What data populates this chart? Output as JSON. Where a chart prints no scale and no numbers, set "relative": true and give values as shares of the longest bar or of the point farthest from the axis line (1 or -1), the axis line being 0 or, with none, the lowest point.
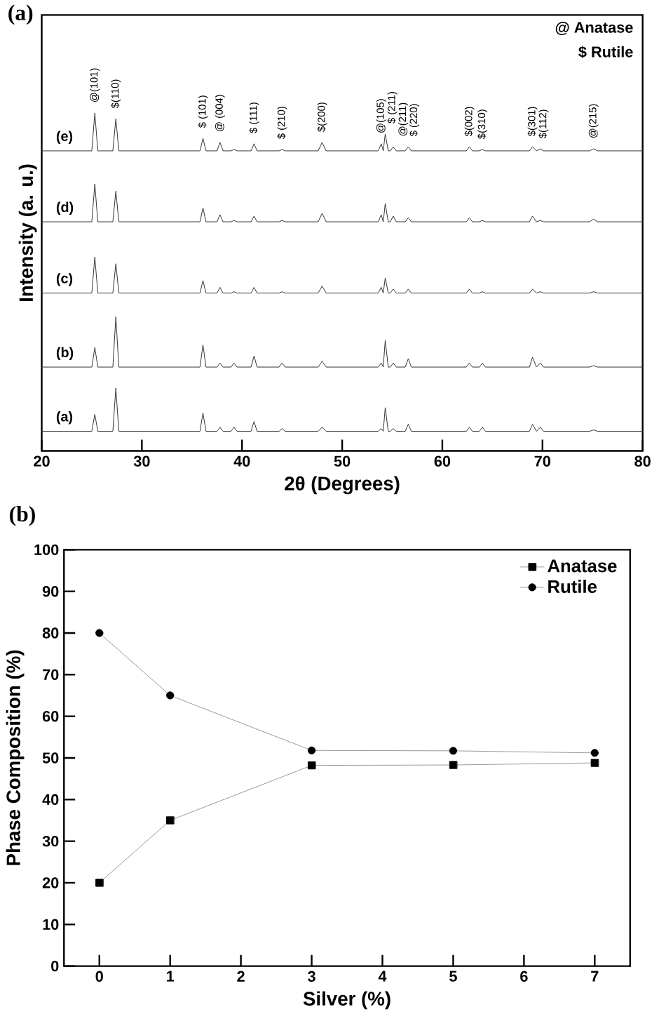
{
  "chart_data": [
    {
      "type": "line",
      "title": "(a)",
      "xlabel": "2θ (Degrees)",
      "ylabel": "Intensity (a. u.)",
      "relative": true,
      "xlim": [
        20,
        80
      ],
      "xticks": [
        20,
        30,
        40,
        50,
        60,
        70,
        80
      ],
      "x": [
        20,
        25.0,
        25.3,
        25.6,
        27.1,
        27.4,
        27.7,
        35.8,
        36.1,
        36.4,
        37.5,
        37.8,
        38.1,
        38.9,
        39.2,
        39.5,
        40.9,
        41.2,
        41.5,
        43.7,
        44.0,
        44.3,
        47.6,
        48.0,
        48.4,
        53.6,
        53.9,
        54.1,
        54.3,
        54.6,
        54.8,
        55.1,
        55.4,
        56.3,
        56.6,
        56.9,
        62.4,
        62.7,
        63.0,
        63.7,
        64.0,
        64.3,
        68.7,
        69.0,
        69.4,
        69.8,
        70.1,
        74.7,
        75.1,
        75.5,
        80
      ],
      "series": [
        {
          "name": "(a)",
          "color": "#333333",
          "values": [
            0.058,
            0.058,
            0.108,
            0.058,
            0.058,
            0.186,
            0.058,
            0.058,
            0.112,
            0.058,
            0.058,
            0.07,
            0.058,
            0.058,
            0.07,
            0.058,
            0.058,
            0.087,
            0.058,
            0.058,
            0.066,
            0.058,
            0.058,
            0.07,
            0.058,
            0.058,
            0.066,
            0.058,
            0.128,
            0.058,
            0.058,
            0.066,
            0.058,
            0.058,
            0.079,
            0.058,
            0.058,
            0.07,
            0.058,
            0.058,
            0.07,
            0.058,
            0.058,
            0.079,
            0.058,
            0.07,
            0.058,
            0.058,
            0.062,
            0.058,
            0.058
          ]
        },
        {
          "name": "(b)",
          "color": "#333333",
          "values": [
            0.248,
            0.248,
            0.306,
            0.248,
            0.248,
            0.397,
            0.248,
            0.248,
            0.314,
            0.248,
            0.248,
            0.26,
            0.248,
            0.248,
            0.26,
            0.248,
            0.248,
            0.281,
            0.248,
            0.248,
            0.26,
            0.248,
            0.248,
            0.265,
            0.248,
            0.248,
            0.26,
            0.248,
            0.327,
            0.248,
            0.248,
            0.26,
            0.248,
            0.248,
            0.273,
            0.248,
            0.248,
            0.26,
            0.248,
            0.248,
            0.26,
            0.248,
            0.248,
            0.277,
            0.248,
            0.26,
            0.248,
            0.248,
            0.252,
            0.248,
            0.248
          ]
        },
        {
          "name": "(c)",
          "color": "#333333",
          "values": [
            0.467,
            0.467,
            0.574,
            0.467,
            0.467,
            0.554,
            0.467,
            0.467,
            0.504,
            0.467,
            0.467,
            0.484,
            0.467,
            0.467,
            0.471,
            0.467,
            0.467,
            0.484,
            0.467,
            0.467,
            0.471,
            0.467,
            0.467,
            0.488,
            0.467,
            0.467,
            0.484,
            0.467,
            0.512,
            0.467,
            0.467,
            0.479,
            0.467,
            0.467,
            0.479,
            0.467,
            0.467,
            0.479,
            0.467,
            0.467,
            0.471,
            0.467,
            0.467,
            0.479,
            0.467,
            0.471,
            0.467,
            0.467,
            0.471,
            0.467,
            0.467
          ]
        },
        {
          "name": "(d)",
          "color": "#333333",
          "values": [
            0.678,
            0.678,
            0.79,
            0.678,
            0.678,
            0.769,
            0.678,
            0.678,
            0.719,
            0.678,
            0.678,
            0.699,
            0.678,
            0.678,
            0.682,
            0.678,
            0.678,
            0.695,
            0.678,
            0.678,
            0.682,
            0.678,
            0.678,
            0.703,
            0.678,
            0.678,
            0.699,
            0.678,
            0.732,
            0.678,
            0.678,
            0.695,
            0.678,
            0.678,
            0.69,
            0.678,
            0.678,
            0.69,
            0.678,
            0.678,
            0.682,
            0.678,
            0.678,
            0.695,
            0.678,
            0.682,
            0.678,
            0.678,
            0.686,
            0.678,
            0.678
          ]
        },
        {
          "name": "(e)",
          "color": "#333333",
          "values": [
            0.888,
            0.888,
            1.0,
            0.888,
            0.888,
            0.983,
            0.888,
            0.888,
            0.925,
            0.888,
            0.888,
            0.913,
            0.888,
            0.888,
            0.892,
            0.888,
            0.888,
            0.909,
            0.888,
            0.888,
            0.892,
            0.888,
            0.888,
            0.913,
            0.888,
            0.888,
            0.909,
            0.888,
            0.938,
            0.888,
            0.888,
            0.9,
            0.888,
            0.888,
            0.9,
            0.888,
            0.888,
            0.9,
            0.888,
            0.888,
            0.892,
            0.888,
            0.888,
            0.9,
            0.888,
            0.894,
            0.888,
            0.888,
            0.894,
            0.888,
            0.888
          ]
        }
      ],
      "annotations": [
        "@ Anatase",
        "$ Rutile",
        {
          "text": "@(101)",
          "x": 25.3,
          "y": 1.0
        },
        {
          "text": "$(110)",
          "x": 27.4,
          "y": 0.983
        },
        {
          "text": "$ (101)",
          "x": 36.1,
          "y": 0.925
        },
        {
          "text": "@ (004)",
          "x": 37.8,
          "y": 0.913
        },
        {
          "text": "$ (111)",
          "x": 41.2,
          "y": 0.909
        },
        {
          "text": "$ (210)",
          "x": 44.0,
          "y": 0.892
        },
        {
          "text": "$(200)",
          "x": 48.0,
          "y": 0.913
        },
        {
          "text": "@(105)",
          "x": 53.9,
          "y": 0.909
        },
        {
          "text": "$ (211)",
          "x": 54.3,
          "y": 0.938
        },
        {
          "text": "@(211)",
          "x": 55.1,
          "y": 0.9
        },
        {
          "text": "$ (220)",
          "x": 56.6,
          "y": 0.9
        },
        {
          "text": "$(002)",
          "x": 62.7,
          "y": 0.9
        },
        {
          "text": "$(310)",
          "x": 64.0,
          "y": 0.892
        },
        {
          "text": "$(301)",
          "x": 69.0,
          "y": 0.9
        },
        {
          "text": "$(112)",
          "x": 69.8,
          "y": 0.894
        },
        {
          "text": "@(215)",
          "x": 75.1,
          "y": 0.894
        }
      ]
    },
    {
      "type": "line",
      "title": "(b)",
      "xlabel": "Silver (%)",
      "ylabel": "Phase Composition (%)",
      "x": [
        0,
        1,
        3,
        5,
        7
      ],
      "xlim": [
        -0.5,
        7.5
      ],
      "xticks": [
        0,
        1,
        2,
        3,
        4,
        5,
        6,
        7
      ],
      "ylim": [
        0,
        100
      ],
      "yticks": [
        0,
        10,
        20,
        30,
        40,
        50,
        60,
        70,
        80,
        90,
        100
      ],
      "legend": "top right",
      "series": [
        {
          "name": "Anatase",
          "color": "#000000",
          "marker": "square",
          "values": [
            20,
            35,
            48.2,
            48.3,
            48.8
          ]
        },
        {
          "name": "Rutile",
          "color": "#000000",
          "marker": "circle",
          "values": [
            80,
            65,
            51.8,
            51.7,
            51.2
          ]
        }
      ]
    }
  ]
}
